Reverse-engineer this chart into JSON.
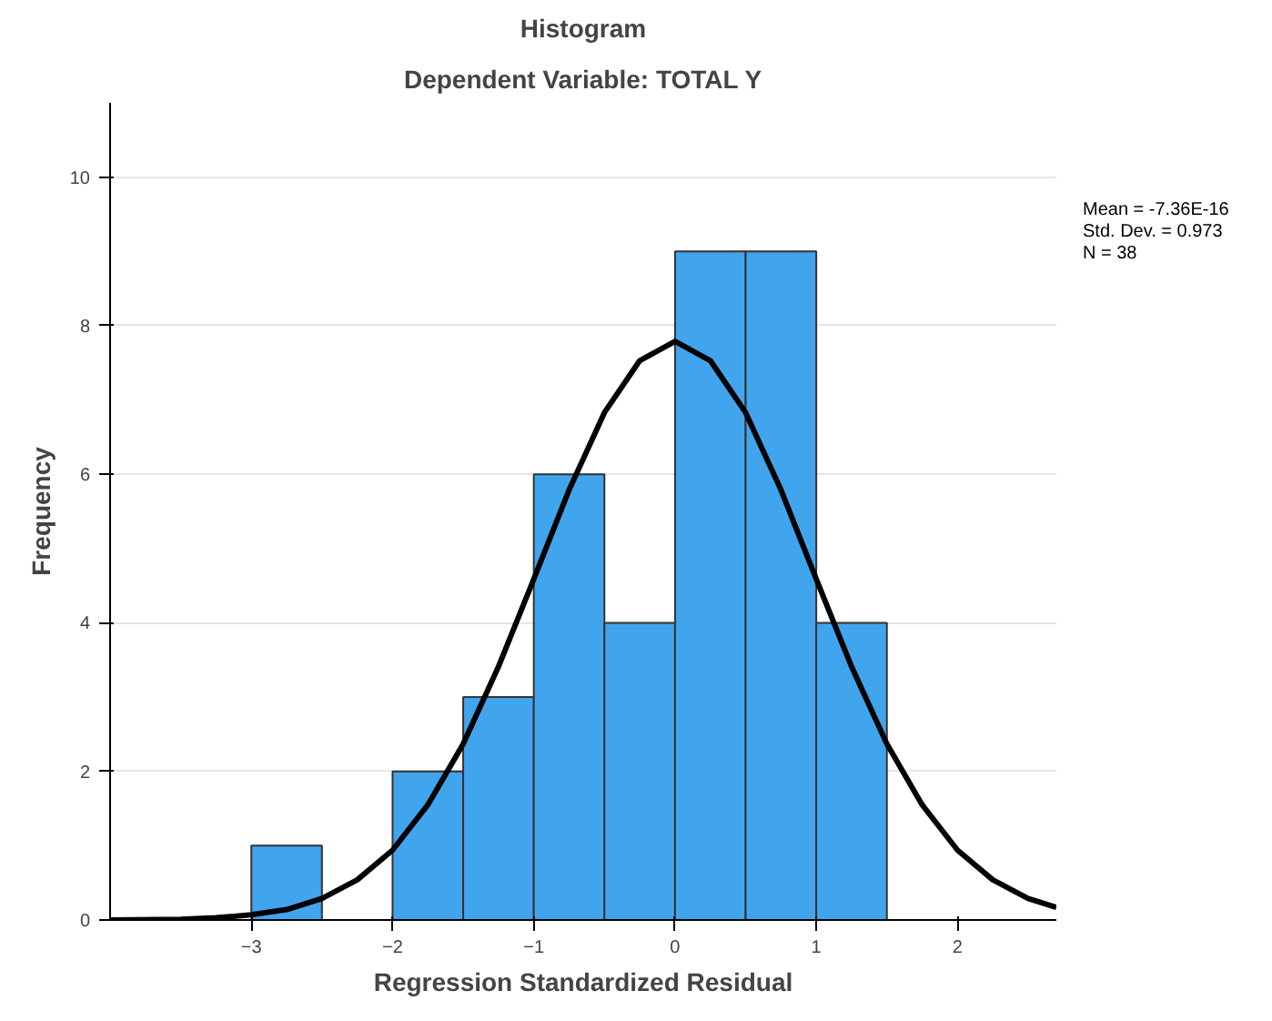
{
  "chart_data": {
    "type": "histogram",
    "title": "Histogram",
    "subtitle": "Dependent Variable: TOTAL Y",
    "xlabel": "Regression Standardized Residual",
    "ylabel": "Frequency",
    "bins": [
      -3,
      -2.5,
      -2,
      -1.5,
      -1,
      -0.5,
      0,
      0.5,
      1,
      1.5
    ],
    "values": [
      1,
      0,
      2,
      3,
      6,
      4,
      9,
      9,
      4
    ],
    "color": "#41a5ee",
    "series": [
      {
        "type": "line",
        "color": "#000000",
        "x": [
          -4,
          -3.5,
          -3.25,
          -3,
          -2.75,
          -2.5,
          -2.25,
          -2,
          -1.75,
          -1.5,
          -1.25,
          -1,
          -0.75,
          -0.5,
          -0.25,
          0,
          0.25,
          0.5,
          0.75,
          1,
          1.25,
          1.5,
          1.75,
          2,
          2.25,
          2.5,
          2.7
        ],
        "values": [
          0.0,
          0.01,
          0.03,
          0.07,
          0.14,
          0.29,
          0.54,
          0.94,
          1.55,
          2.37,
          3.41,
          4.59,
          5.79,
          6.83,
          7.53,
          7.79,
          7.53,
          6.83,
          5.79,
          4.59,
          3.41,
          2.37,
          1.55,
          0.94,
          0.54,
          0.29,
          0.17
        ]
      }
    ],
    "annotations": [
      "Mean = -7.36E-16",
      "Std. Dev. = 0.973",
      "N = 38"
    ],
    "xlim": [
      -4,
      2.7
    ],
    "ylim": [
      0,
      11
    ],
    "xticks": [
      -3,
      -2,
      -1,
      0,
      1,
      2
    ],
    "yticks": [
      0,
      2,
      4,
      6,
      8,
      10
    ],
    "grid": "y"
  }
}
